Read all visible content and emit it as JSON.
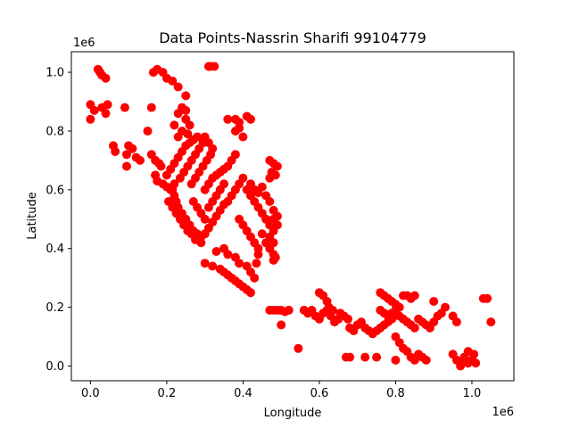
{
  "chart_data": {
    "type": "scatter",
    "title": "Data Points-Nassrin Sharifi 99104779",
    "xlabel": "Longitude",
    "ylabel": "Latitude",
    "x_offset_label": "1e6",
    "y_offset_label": "1e6",
    "xlim": [
      -50000,
      1110000
    ],
    "ylim": [
      -50000,
      1070000
    ],
    "x_ticks": [
      0.0,
      0.2,
      0.4,
      0.6,
      0.8,
      1.0
    ],
    "x_tick_labels": [
      "0.0",
      "0.2",
      "0.4",
      "0.6",
      "0.8",
      "1.0"
    ],
    "y_ticks": [
      0.0,
      0.2,
      0.4,
      0.6,
      0.8,
      1.0
    ],
    "y_tick_labels": [
      "0.0",
      "0.2",
      "0.4",
      "0.6",
      "0.8",
      "1.0"
    ],
    "grid": false,
    "legend": "none",
    "marker_color": "#ff0000",
    "series": [
      {
        "points": [
          [
            0,
            890000
          ],
          [
            0,
            840000
          ],
          [
            10000,
            870000
          ],
          [
            20000,
            1010000
          ],
          [
            25000,
            1000000
          ],
          [
            30000,
            990000
          ],
          [
            40000,
            980000
          ],
          [
            30000,
            880000
          ],
          [
            45000,
            890000
          ],
          [
            40000,
            860000
          ],
          [
            60000,
            750000
          ],
          [
            65000,
            730000
          ],
          [
            90000,
            880000
          ],
          [
            95000,
            720000
          ],
          [
            100000,
            750000
          ],
          [
            110000,
            740000
          ],
          [
            120000,
            710000
          ],
          [
            130000,
            700000
          ],
          [
            95000,
            680000
          ],
          [
            150000,
            800000
          ],
          [
            160000,
            880000
          ],
          [
            165000,
            1000000
          ],
          [
            175000,
            1010000
          ],
          [
            190000,
            1000000
          ],
          [
            200000,
            980000
          ],
          [
            215000,
            970000
          ],
          [
            230000,
            950000
          ],
          [
            250000,
            920000
          ],
          [
            160000,
            720000
          ],
          [
            170000,
            700000
          ],
          [
            180000,
            690000
          ],
          [
            185000,
            680000
          ],
          [
            170000,
            650000
          ],
          [
            175000,
            630000
          ],
          [
            190000,
            620000
          ],
          [
            200000,
            610000
          ],
          [
            210000,
            600000
          ],
          [
            220000,
            580000
          ],
          [
            225000,
            560000
          ],
          [
            230000,
            540000
          ],
          [
            240000,
            520000
          ],
          [
            250000,
            500000
          ],
          [
            260000,
            480000
          ],
          [
            270000,
            460000
          ],
          [
            280000,
            450000
          ],
          [
            290000,
            440000
          ],
          [
            200000,
            650000
          ],
          [
            210000,
            670000
          ],
          [
            220000,
            690000
          ],
          [
            230000,
            710000
          ],
          [
            240000,
            730000
          ],
          [
            250000,
            750000
          ],
          [
            260000,
            760000
          ],
          [
            270000,
            770000
          ],
          [
            280000,
            780000
          ],
          [
            230000,
            860000
          ],
          [
            240000,
            880000
          ],
          [
            250000,
            870000
          ],
          [
            250000,
            840000
          ],
          [
            260000,
            820000
          ],
          [
            240000,
            800000
          ],
          [
            220000,
            820000
          ],
          [
            230000,
            780000
          ],
          [
            255000,
            790000
          ],
          [
            215000,
            600000
          ],
          [
            220000,
            620000
          ],
          [
            235000,
            640000
          ],
          [
            245000,
            660000
          ],
          [
            255000,
            680000
          ],
          [
            265000,
            700000
          ],
          [
            275000,
            720000
          ],
          [
            285000,
            740000
          ],
          [
            295000,
            760000
          ],
          [
            205000,
            560000
          ],
          [
            215000,
            540000
          ],
          [
            225000,
            520000
          ],
          [
            235000,
            500000
          ],
          [
            245000,
            480000
          ],
          [
            255000,
            460000
          ],
          [
            265000,
            450000
          ],
          [
            275000,
            430000
          ],
          [
            290000,
            420000
          ],
          [
            300000,
            450000
          ],
          [
            310000,
            470000
          ],
          [
            320000,
            490000
          ],
          [
            330000,
            510000
          ],
          [
            340000,
            530000
          ],
          [
            350000,
            550000
          ],
          [
            360000,
            560000
          ],
          [
            370000,
            580000
          ],
          [
            380000,
            600000
          ],
          [
            300000,
            600000
          ],
          [
            310000,
            620000
          ],
          [
            320000,
            640000
          ],
          [
            330000,
            650000
          ],
          [
            340000,
            660000
          ],
          [
            350000,
            670000
          ],
          [
            360000,
            680000
          ],
          [
            370000,
            700000
          ],
          [
            380000,
            720000
          ],
          [
            300000,
            780000
          ],
          [
            310000,
            760000
          ],
          [
            320000,
            740000
          ],
          [
            315000,
            720000
          ],
          [
            305000,
            700000
          ],
          [
            295000,
            680000
          ],
          [
            285000,
            660000
          ],
          [
            275000,
            640000
          ],
          [
            265000,
            620000
          ],
          [
            270000,
            560000
          ],
          [
            280000,
            540000
          ],
          [
            290000,
            520000
          ],
          [
            300000,
            500000
          ],
          [
            310000,
            540000
          ],
          [
            320000,
            560000
          ],
          [
            330000,
            580000
          ],
          [
            340000,
            600000
          ],
          [
            350000,
            620000
          ],
          [
            315000,
            1020000
          ],
          [
            325000,
            1020000
          ],
          [
            310000,
            1020000
          ],
          [
            300000,
            350000
          ],
          [
            320000,
            340000
          ],
          [
            340000,
            330000
          ],
          [
            350000,
            320000
          ],
          [
            360000,
            310000
          ],
          [
            370000,
            300000
          ],
          [
            380000,
            290000
          ],
          [
            390000,
            280000
          ],
          [
            400000,
            270000
          ],
          [
            410000,
            260000
          ],
          [
            420000,
            250000
          ],
          [
            330000,
            390000
          ],
          [
            350000,
            400000
          ],
          [
            360000,
            380000
          ],
          [
            380000,
            370000
          ],
          [
            390000,
            350000
          ],
          [
            410000,
            340000
          ],
          [
            420000,
            320000
          ],
          [
            430000,
            300000
          ],
          [
            435000,
            350000
          ],
          [
            440000,
            380000
          ],
          [
            360000,
            840000
          ],
          [
            380000,
            840000
          ],
          [
            390000,
            830000
          ],
          [
            410000,
            850000
          ],
          [
            420000,
            840000
          ],
          [
            390000,
            810000
          ],
          [
            380000,
            800000
          ],
          [
            400000,
            780000
          ],
          [
            390000,
            620000
          ],
          [
            400000,
            640000
          ],
          [
            410000,
            600000
          ],
          [
            420000,
            580000
          ],
          [
            430000,
            560000
          ],
          [
            440000,
            540000
          ],
          [
            450000,
            520000
          ],
          [
            460000,
            500000
          ],
          [
            470000,
            480000
          ],
          [
            480000,
            460000
          ],
          [
            390000,
            500000
          ],
          [
            400000,
            480000
          ],
          [
            410000,
            460000
          ],
          [
            420000,
            440000
          ],
          [
            430000,
            420000
          ],
          [
            440000,
            400000
          ],
          [
            450000,
            450000
          ],
          [
            460000,
            420000
          ],
          [
            470000,
            440000
          ],
          [
            480000,
            420000
          ],
          [
            420000,
            620000
          ],
          [
            430000,
            600000
          ],
          [
            440000,
            590000
          ],
          [
            450000,
            610000
          ],
          [
            460000,
            580000
          ],
          [
            470000,
            560000
          ],
          [
            480000,
            530000
          ],
          [
            490000,
            510000
          ],
          [
            490000,
            480000
          ],
          [
            480000,
            500000
          ],
          [
            470000,
            700000
          ],
          [
            480000,
            690000
          ],
          [
            490000,
            680000
          ],
          [
            475000,
            660000
          ],
          [
            485000,
            650000
          ],
          [
            470000,
            640000
          ],
          [
            470000,
            400000
          ],
          [
            480000,
            380000
          ],
          [
            480000,
            360000
          ],
          [
            485000,
            370000
          ],
          [
            470000,
            190000
          ],
          [
            480000,
            190000
          ],
          [
            490000,
            190000
          ],
          [
            500000,
            190000
          ],
          [
            510000,
            185000
          ],
          [
            520000,
            190000
          ],
          [
            500000,
            140000
          ],
          [
            545000,
            60000
          ],
          [
            560000,
            190000
          ],
          [
            570000,
            180000
          ],
          [
            580000,
            190000
          ],
          [
            590000,
            170000
          ],
          [
            600000,
            160000
          ],
          [
            610000,
            180000
          ],
          [
            620000,
            190000
          ],
          [
            630000,
            170000
          ],
          [
            640000,
            150000
          ],
          [
            650000,
            160000
          ],
          [
            600000,
            250000
          ],
          [
            610000,
            240000
          ],
          [
            620000,
            220000
          ],
          [
            625000,
            200000
          ],
          [
            635000,
            190000
          ],
          [
            655000,
            180000
          ],
          [
            665000,
            170000
          ],
          [
            675000,
            160000
          ],
          [
            680000,
            130000
          ],
          [
            690000,
            120000
          ],
          [
            700000,
            140000
          ],
          [
            710000,
            150000
          ],
          [
            720000,
            130000
          ],
          [
            730000,
            120000
          ],
          [
            740000,
            110000
          ],
          [
            750000,
            120000
          ],
          [
            760000,
            130000
          ],
          [
            770000,
            140000
          ],
          [
            780000,
            150000
          ],
          [
            790000,
            160000
          ],
          [
            760000,
            250000
          ],
          [
            770000,
            240000
          ],
          [
            780000,
            230000
          ],
          [
            790000,
            220000
          ],
          [
            800000,
            210000
          ],
          [
            810000,
            200000
          ],
          [
            820000,
            240000
          ],
          [
            830000,
            240000
          ],
          [
            840000,
            230000
          ],
          [
            850000,
            240000
          ],
          [
            760000,
            190000
          ],
          [
            770000,
            180000
          ],
          [
            780000,
            170000
          ],
          [
            790000,
            180000
          ],
          [
            800000,
            190000
          ],
          [
            810000,
            170000
          ],
          [
            820000,
            160000
          ],
          [
            830000,
            150000
          ],
          [
            840000,
            140000
          ],
          [
            850000,
            130000
          ],
          [
            800000,
            100000
          ],
          [
            810000,
            80000
          ],
          [
            820000,
            60000
          ],
          [
            830000,
            50000
          ],
          [
            840000,
            30000
          ],
          [
            850000,
            20000
          ],
          [
            860000,
            40000
          ],
          [
            870000,
            30000
          ],
          [
            880000,
            20000
          ],
          [
            800000,
            20000
          ],
          [
            860000,
            160000
          ],
          [
            870000,
            150000
          ],
          [
            880000,
            140000
          ],
          [
            890000,
            130000
          ],
          [
            900000,
            150000
          ],
          [
            910000,
            170000
          ],
          [
            920000,
            180000
          ],
          [
            900000,
            220000
          ],
          [
            930000,
            200000
          ],
          [
            950000,
            170000
          ],
          [
            720000,
            30000
          ],
          [
            670000,
            30000
          ],
          [
            680000,
            30000
          ],
          [
            750000,
            30000
          ],
          [
            950000,
            40000
          ],
          [
            960000,
            20000
          ],
          [
            970000,
            10000
          ],
          [
            980000,
            30000
          ],
          [
            990000,
            50000
          ],
          [
            1000000,
            20000
          ],
          [
            1010000,
            10000
          ],
          [
            970000,
            0
          ],
          [
            990000,
            10000
          ],
          [
            1005000,
            40000
          ],
          [
            1030000,
            230000
          ],
          [
            1040000,
            230000
          ],
          [
            1050000,
            150000
          ],
          [
            960000,
            150000
          ]
        ]
      }
    ]
  }
}
